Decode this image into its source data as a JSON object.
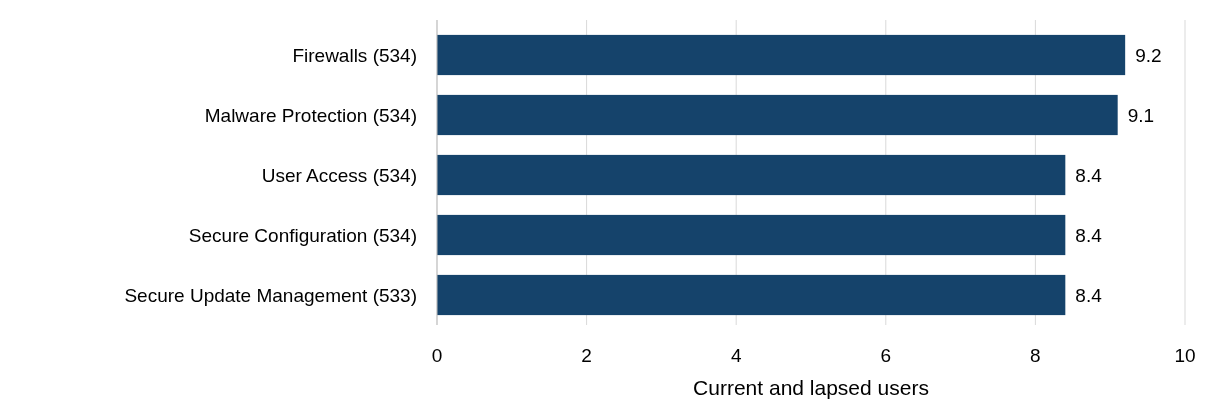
{
  "chart_data": {
    "type": "bar",
    "orientation": "horizontal",
    "xlabel": "Current and lapsed users",
    "categories": [
      "Firewalls (534)",
      "Malware Protection (534)",
      "User Access (534)",
      "Secure Configuration (534)",
      "Secure Update Management (533)"
    ],
    "values": [
      9.2,
      9.1,
      8.4,
      8.4,
      8.4
    ],
    "color": "#15436b",
    "xlim": [
      0,
      10
    ],
    "xticks": [
      0,
      2,
      4,
      6,
      8,
      10
    ],
    "grid": "x",
    "data_labels": true
  }
}
